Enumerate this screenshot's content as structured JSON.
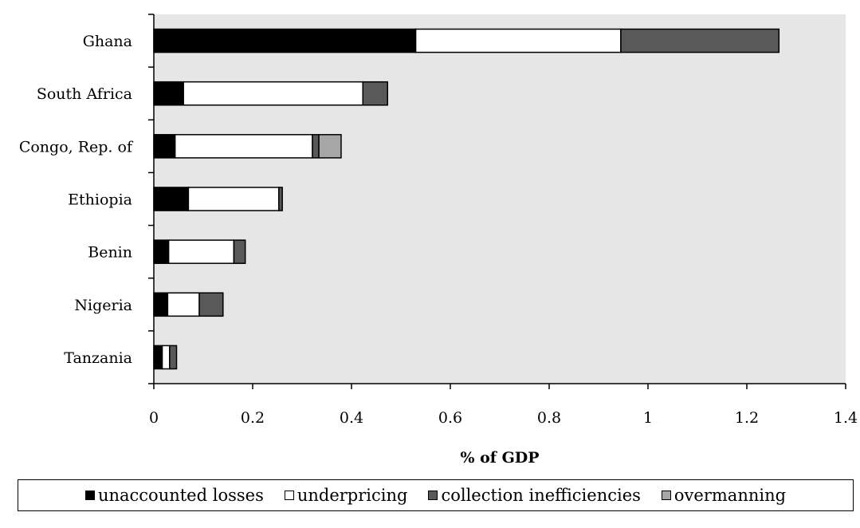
{
  "chart_data": {
    "type": "bar",
    "orientation": "horizontal",
    "stacked": true,
    "categories": [
      "Ghana",
      "South Africa",
      "Congo, Rep. of",
      "Ethiopia",
      "Benin",
      "Nigeria",
      "Tanzania"
    ],
    "series": [
      {
        "name": "unaccounted losses",
        "color": "#000000",
        "values": [
          0.53,
          0.06,
          0.043,
          0.07,
          0.03,
          0.028,
          0.017
        ]
      },
      {
        "name": "underpricing",
        "color": "#ffffff",
        "values": [
          0.415,
          0.363,
          0.278,
          0.183,
          0.132,
          0.064,
          0.015
        ]
      },
      {
        "name": "collection inefficiencies",
        "color": "#595959",
        "values": [
          0.32,
          0.05,
          0.013,
          0.007,
          0.023,
          0.048,
          0.014
        ]
      },
      {
        "name": "overmanning",
        "color": "#a6a6a6",
        "values": [
          0,
          0,
          0.045,
          0,
          0,
          0,
          0
        ]
      }
    ],
    "xlabel": "% of GDP",
    "ylabel": "",
    "xlim": [
      0,
      1.4
    ],
    "xticks": [
      "0",
      "0.2",
      "0.4",
      "0.6",
      "0.8",
      "1",
      "1.2",
      "1.4"
    ],
    "plot_background": "#e6e6e6",
    "grid": false,
    "legend_position": "bottom"
  }
}
